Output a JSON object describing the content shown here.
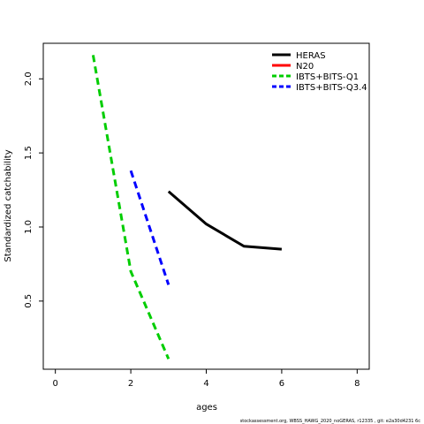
{
  "chart_data": {
    "type": "line",
    "xlabel": "ages",
    "ylabel": "Standardized catchability",
    "xlim": [
      -0.32,
      8.32
    ],
    "ylim": [
      0.04,
      2.24
    ],
    "x_ticks": [
      0,
      2,
      4,
      6,
      8
    ],
    "y_ticks": [
      0.5,
      1.0,
      1.5,
      2.0
    ],
    "y_tick_labels": [
      "0.5",
      "1.0",
      "1.5",
      "2.0"
    ],
    "legend_position": "top-right",
    "series": [
      {
        "name": "HERAS",
        "color": "#000000",
        "dash": "solid",
        "x": [
          3,
          4,
          5,
          6
        ],
        "y": [
          1.24,
          1.02,
          0.87,
          0.85
        ]
      },
      {
        "name": "N20",
        "color": "#ff0000",
        "dash": "solid",
        "x": [],
        "y": []
      },
      {
        "name": "IBTS+BITS-Q1",
        "color": "#00cd00",
        "dash": "dashed",
        "x": [
          1,
          2,
          3
        ],
        "y": [
          2.16,
          0.7,
          0.11
        ]
      },
      {
        "name": "IBTS+BITS-Q3.4",
        "color": "#0000ff",
        "dash": "dashed",
        "x": [
          2,
          3
        ],
        "y": [
          1.38,
          0.61
        ]
      }
    ]
  },
  "footer": "stockassessment.org,  WBSS_HAWG_2020_noGERAS,  r12335 ,  git:  e2a30d4231 6c"
}
